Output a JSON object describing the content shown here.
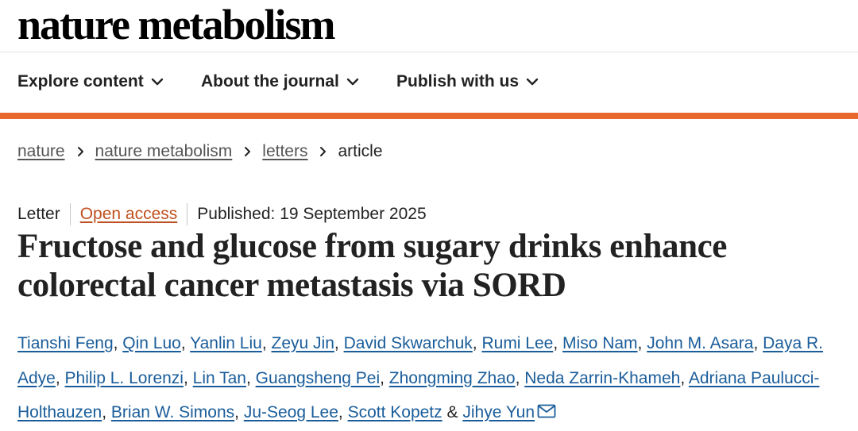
{
  "site": {
    "logo_text": "nature metabolism"
  },
  "nav": {
    "items": [
      {
        "label": "Explore content",
        "icon": "chevron-down-icon"
      },
      {
        "label": "About the journal",
        "icon": "chevron-down-icon"
      },
      {
        "label": "Publish with us",
        "icon": "chevron-down-icon"
      }
    ]
  },
  "breadcrumbs": {
    "items": [
      "nature",
      "nature metabolism",
      "letters"
    ],
    "current": "article"
  },
  "article": {
    "type": "Letter",
    "access": "Open access",
    "published": "Published: 19 September 2025",
    "title": "Fructose and glucose from sugary drinks enhance colorectal cancer metastasis via SORD",
    "authors": [
      "Tianshi Feng",
      "Qin Luo",
      "Yanlin Liu",
      "Zeyu Jin",
      "David Skwarchuk",
      "Rumi Lee",
      "Miso Nam",
      "John M. Asara",
      "Daya R. Adye",
      "Philip L. Lorenzi",
      "Lin Tan",
      "Guangsheng Pei",
      "Zhongming Zhao",
      "Neda Zarrin-Khameh",
      "Adriana Paulucci-Holthauzen",
      "Brian W. Simons",
      "Ju-Seog Lee",
      "Scott Kopetz",
      "Jihye Yun"
    ],
    "author_separator": ", ",
    "last_separator": " & ",
    "corresponding_icon": "mail-icon"
  },
  "colors": {
    "accent": "#e8692d",
    "open_access": "#c0501f",
    "author_link": "#1a5d9a",
    "text": "#222222"
  }
}
